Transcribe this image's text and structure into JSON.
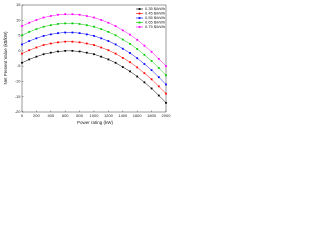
{
  "chart_data": {
    "type": "line",
    "x_label": "Power rating (kW)",
    "y_label": "Net Present Value (k$/kW)",
    "x": [
      0,
      100,
      200,
      300,
      400,
      500,
      600,
      700,
      800,
      900,
      1000,
      1100,
      1200,
      1300,
      1400,
      1500,
      1600,
      1700,
      1800,
      1900,
      2000
    ],
    "series": [
      {
        "name": "0.35 $/kWh",
        "color": "#000000",
        "values": [
          -3.9,
          -2.8,
          -1.9,
          -1.1,
          -0.6,
          -0.2,
          0,
          0,
          -0.2,
          -0.6,
          -1.1,
          -1.9,
          -2.8,
          -3.9,
          -5.3,
          -6.7,
          -8.4,
          -10.3,
          -12.3,
          -14.6,
          -17
        ]
      },
      {
        "name": "0.45 $/kWh",
        "color": "#ff0000",
        "values": [
          -0.9,
          0.2,
          1.1,
          1.9,
          2.4,
          2.8,
          3,
          3,
          2.8,
          2.4,
          1.9,
          1.1,
          0.2,
          -0.9,
          -2.3,
          -3.7,
          -5.4,
          -7.3,
          -9.3,
          -11.6,
          -14
        ]
      },
      {
        "name": "0.55 $/kWh",
        "color": "#0000ff",
        "values": [
          2.1,
          3.2,
          4.1,
          4.9,
          5.4,
          5.8,
          6,
          6,
          5.8,
          5.4,
          4.9,
          4.1,
          3.2,
          2.1,
          0.7,
          -0.7,
          -2.4,
          -4.3,
          -6.3,
          -8.6,
          -11
        ]
      },
      {
        "name": "0.65 $/kWh",
        "color": "#00cc00",
        "values": [
          5.1,
          6.2,
          7.1,
          7.9,
          8.4,
          8.8,
          9,
          9,
          8.8,
          8.4,
          7.9,
          7.1,
          6.2,
          5.1,
          3.7,
          2.3,
          0.6,
          -1.3,
          -3.3,
          -5.6,
          -8
        ]
      },
      {
        "name": "0.75 $/kWh",
        "color": "#ff00ff",
        "values": [
          8.1,
          9.2,
          10.1,
          10.9,
          11.4,
          11.8,
          12,
          12,
          11.8,
          11.4,
          10.9,
          10.1,
          9.2,
          8.1,
          6.7,
          5.3,
          3.6,
          1.7,
          -0.3,
          -2.6,
          -5
        ]
      }
    ],
    "xlim": [
      0,
      2000
    ],
    "xticks": [
      0,
      200,
      400,
      600,
      800,
      1000,
      1200,
      1400,
      1600,
      1800,
      2000
    ],
    "ylim": [
      -20,
      15
    ],
    "yticks": [
      -20,
      -15,
      -10,
      -5,
      0,
      5,
      10,
      15
    ],
    "legend": "upper right"
  }
}
